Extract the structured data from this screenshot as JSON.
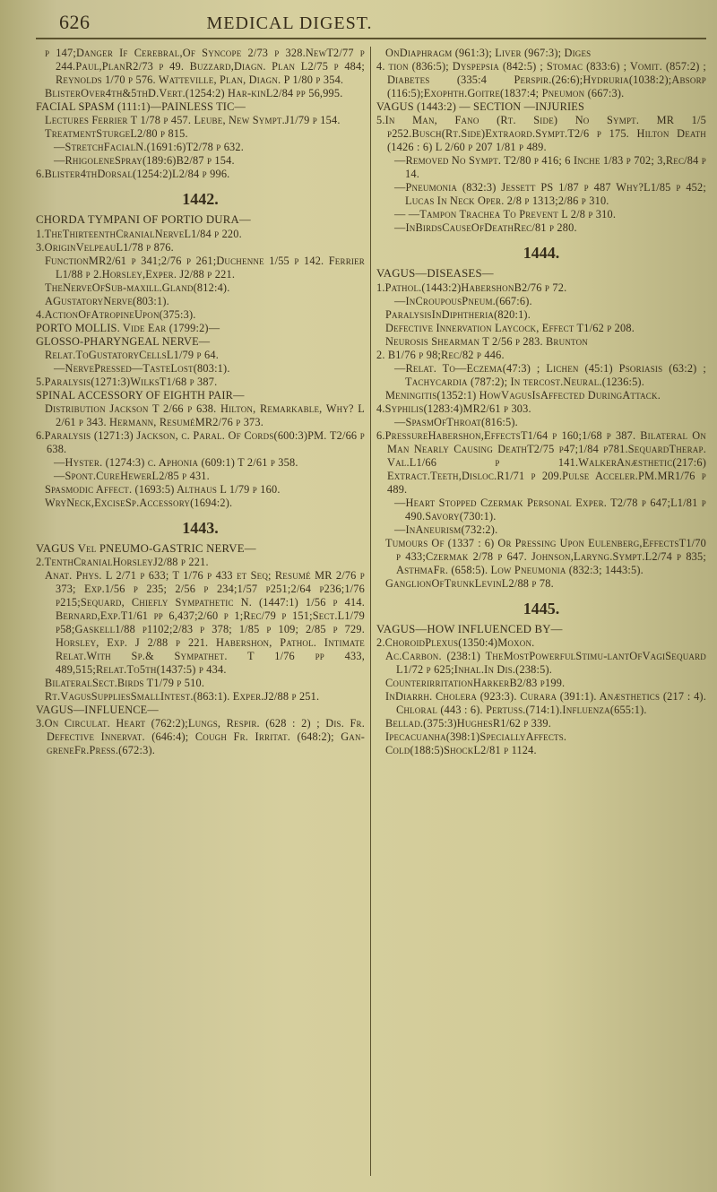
{
  "page_number": "626",
  "running_title": "MEDICAL DIGEST.",
  "columns": {
    "left": [
      {
        "cls": "sub1",
        "t": "p 147;Danger If Cerebral,Of Syncope 2/73 p 328.NewT2/77 p 244.Paul,PlanR2/73 p 49. Buzzard,Diagn. Plan L2/75 p 484; Reynolds 1/70 p 576. Watteville, Plan, Diagn. P 1/80 p 354."
      },
      {
        "cls": "sub1",
        "t": "BlisterOver4th&5thD.Vert.(1254:2) Har-kinL2/84 pp 56,995."
      },
      {
        "cls": "entry",
        "t": "FACIAL SPASM (111:1)—PAINLESS TIC—"
      },
      {
        "cls": "sub1",
        "t": "Lectures Ferrier T 1/78 p 457. Leube, New Sympt.J1/79 p 154."
      },
      {
        "cls": "sub1",
        "t": "TreatmentSturgeL2/80 p 815."
      },
      {
        "cls": "sub2",
        "t": "—StretchFacialN.(1691:6)T2/78 p 632."
      },
      {
        "cls": "sub2",
        "t": "—RhigoleneSpray(189:6)B2/87 p 154."
      },
      {
        "cls": "entry",
        "t": "6.Blister4thDorsal(1254:2)L2/84 p 996."
      },
      {
        "cls": "head-num",
        "t": "1442."
      },
      {
        "cls": "head-term",
        "t": "CHORDA TYMPANI OF PORTIO DURA—"
      },
      {
        "cls": "entry",
        "t": "1.TheThirteenthCranialNerveL1/84 p 220."
      },
      {
        "cls": "entry",
        "t": "3.OriginVelpeauL1/78 p 876."
      },
      {
        "cls": "sub1",
        "t": "FunctionMR2/61 p 341;2/76 p 261;Duchenne 1/55 p 142. Ferrier L1/88 p 2.Horsley,Exper. J2/88 p 221."
      },
      {
        "cls": "sub1",
        "t": "TheNerveOfSub-maxill.Gland(812:4)."
      },
      {
        "cls": "sub1",
        "t": "AGustatoryNerve(803:1)."
      },
      {
        "cls": "entry",
        "t": "4.ActionOfAtropineUpon(375:3)."
      },
      {
        "cls": "entry",
        "t": "PORTO MOLLIS. Vide Ear (1799:2)—"
      },
      {
        "cls": "entry",
        "t": "GLOSSO-PHARYNGEAL NERVE—"
      },
      {
        "cls": "sub1",
        "t": "Relat.ToGustatoryCellsL1/79 p 64."
      },
      {
        "cls": "sub2",
        "t": "—NervePressed—TasteLost(803:1)."
      },
      {
        "cls": "entry",
        "t": "5.Paralysis(1271:3)WilksT1/68 p 387."
      },
      {
        "cls": "entry",
        "t": "SPINAL ACCESSORY OF EIGHTH PAIR—"
      },
      {
        "cls": "sub1",
        "t": "Distribution Jackson T 2/66 p 638. Hilton, Remarkable, Why? L 2/61 p 343. Hermann, ResuméMR2/76 p 373."
      },
      {
        "cls": "entry",
        "t": "6.Paralysis (1271:3) Jackson, c. Paral. Of Cords(600:3)PM. T2/66 p 638."
      },
      {
        "cls": "sub2",
        "t": "—Hyster. (1274:3) c. Aphonia (609:1) T 2/61 p 358."
      },
      {
        "cls": "sub2",
        "t": "—Spont.CureHewerL2/85 p 431."
      },
      {
        "cls": "sub1",
        "t": "Spasmodic Affect. (1693:5) Althaus L 1/79 p 160."
      },
      {
        "cls": "sub1",
        "t": "WryNeck,ExciseSp.Accessory(1694:2)."
      },
      {
        "cls": "head-num",
        "t": "1443."
      },
      {
        "cls": "head-term",
        "t": "VAGUS Vel PNEUMO-GASTRIC NERVE—"
      },
      {
        "cls": "entry",
        "t": "2.TenthCranialHorsleyJ2/88 p 221."
      },
      {
        "cls": "sub1",
        "t": "Anat. Phys. L 2/71 p 633; T 1/76 p 433 et Seq; Resumé MR 2/76 p 373; Exp.1/56 p 235; 2/56 p 234;1/57 p251;2/64 p236;1/76 p215;Sequard, Chiefly Sympathetic N. (1447:1) 1/56 p 414. Bernard,Exp.T1/61 pp 6,437;2/60 p 1;Rec/79 p 151;Sect.L1/79 p58;Gaskell1/88 p1102;2/83 p 378; 1/85 p 109; 2/85 p 729. Horsley, Exp. J 2/88 p 221. Habershon, Pathol. Intimate Relat.With Sp.& Sympathet. T 1/76 pp 433, 489,515;Relat.To5th(1437:5) p 434."
      },
      {
        "cls": "sub1",
        "t": "BilateralSect.Birds T1/79 p 510."
      },
      {
        "cls": "sub1",
        "t": "Rt.VagusSuppliesSmallIntest.(863:1). Exper.J2/88 p 251."
      },
      {
        "cls": "entry",
        "t": "VAGUS—INFLUENCE—"
      },
      {
        "cls": "entry",
        "t": "3.On Circulat. Heart (762:2);Lungs, Respir. (628 : 2) ; Dis. Fr. Defective Innervat. (646:4); Cough Fr. Irritat. (648:2); Gan-greneFr.Press.(672:3)."
      }
    ],
    "right": [
      {
        "cls": "sub1",
        "t": "OnDiaphragm (961:3); Liver (967:3); Diges"
      },
      {
        "cls": "entry",
        "t": "4. tion (836:5); Dyspepsia (842:5) ; Stomac (833:6) ; Vomit. (857:2) ; Diabetes (335:4 Perspir.(26:6);Hydruria(1038:2);Absorp (116:5);Exophth.Goitre(1837:4; Pneumon (667:3)."
      },
      {
        "cls": "entry",
        "t": "VAGUS (1443:2) — SECTION —INJURIES"
      },
      {
        "cls": "entry",
        "t": "5.In Man, Fano (Rt. Side) No Sympt. MR 1/5 p252.Busch(Rt.Side)Extraord.Sympt.T2/6 p 175. Hilton Death (1426 : 6) L 2/60 p 207 1/81 p 489."
      },
      {
        "cls": "sub2",
        "t": "—Removed No Sympt. T2/80 p 416; 6 Inche 1/83 p 702; 3,Rec/84 p 14."
      },
      {
        "cls": "sub2",
        "t": "—Pneumonia (832:3) Jessett PS 1/87 p 487 Why?L1/85 p 452; Lucas In Neck Oper. 2/8 p 1313;2/86 p 310."
      },
      {
        "cls": "sub2",
        "t": "— —Tampon Trachea To Prevent L 2/8 p 310."
      },
      {
        "cls": "sub2",
        "t": "—InBirdsCauseOfDeathRec/81 p 280."
      },
      {
        "cls": "head-num",
        "t": "1444."
      },
      {
        "cls": "head-term",
        "t": "VAGUS—DISEASES—"
      },
      {
        "cls": "entry",
        "t": "1.Pathol.(1443:2)HabershonB2/76 p 72."
      },
      {
        "cls": "sub2",
        "t": "—InCroupousPneum.(667:6)."
      },
      {
        "cls": "sub1",
        "t": "ParalysisInDiphtheria(820:1)."
      },
      {
        "cls": "sub1",
        "t": "Defective Innervation Laycock, Effect T1/62 p 208."
      },
      {
        "cls": "sub1",
        "t": "Neurosis Shearman T 2/56 p 283. Brunton"
      },
      {
        "cls": "entry",
        "t": "2. B1/76 p 98;Rec/82 p 446."
      },
      {
        "cls": "sub2",
        "t": "—Relat. To—Eczema(47:3) ; Lichen (45:1) Psoriasis (63:2) ; Tachycardia (787:2); In tercost.Neural.(1236:5)."
      },
      {
        "cls": "sub1",
        "t": "Meningitis(1352:1) HowVagusIsAffected DuringAttack."
      },
      {
        "cls": "entry",
        "t": "4.Syphilis(1283:4)MR2/61 p 303."
      },
      {
        "cls": "sub2",
        "t": "—SpasmOfThroat(816:5)."
      },
      {
        "cls": "entry",
        "t": "6.PressureHabershon,EffectsT1/64 p 160;1/68 p 387. Bilateral On Man Nearly Causing DeathT2/75 p47;1/84 p781.SequardTherap. Val.L1/66 p 141.WalkerAnæsthetic(217:6) Extract.Teeth,Disloc.R1/71 p 209.Pulse Acceler.PM.MR1/76 p 489."
      },
      {
        "cls": "sub2",
        "t": "—Heart Stopped Czermak Personal Exper. T2/78 p 647;L1/81 p 490.Savory(730:1)."
      },
      {
        "cls": "sub2",
        "t": "—InAneurism(732:2)."
      },
      {
        "cls": "sub1",
        "t": "Tumours Of (1337 : 6) Or Pressing Upon Eulenberg,EffectsT1/70 p 433;Czermak 2/78 p 647. Johnson,Laryng.Sympt.L2/74 p 835; AsthmaFr. (658:5). Low Pneumonia (832:3; 1443:5)."
      },
      {
        "cls": "sub1",
        "t": "GanglionOfTrunkLevinL2/88 p 78."
      },
      {
        "cls": "head-num",
        "t": "1445."
      },
      {
        "cls": "head-term",
        "t": "VAGUS—HOW INFLUENCED BY—"
      },
      {
        "cls": "entry",
        "t": "2.ChoroidPlexus(1350:4)Moxon."
      },
      {
        "cls": "sub1",
        "t": "Ac.Carbon. (238:1) TheMostPowerfulStimu-lantOfVagiSequard L1/72 p 625;Inhal.In Dis.(238:5)."
      },
      {
        "cls": "sub1",
        "t": "CounterirritationHarkerB2/83 p199."
      },
      {
        "cls": "sub1",
        "t": "InDiarrh. Cholera (923:3). Curara (391:1). Anæsthetics (217 : 4). Chloral (443 : 6). Pertuss.(714:1).Influenza(655:1)."
      },
      {
        "cls": "sub1",
        "t": "Bellad.(375:3)HughesR1/62 p 339."
      },
      {
        "cls": "sub1",
        "t": "Ipecacuanha(398:1)SpeciallyAffects."
      },
      {
        "cls": "sub1",
        "t": "Cold(188:5)ShockL2/81 p 1124."
      }
    ]
  }
}
